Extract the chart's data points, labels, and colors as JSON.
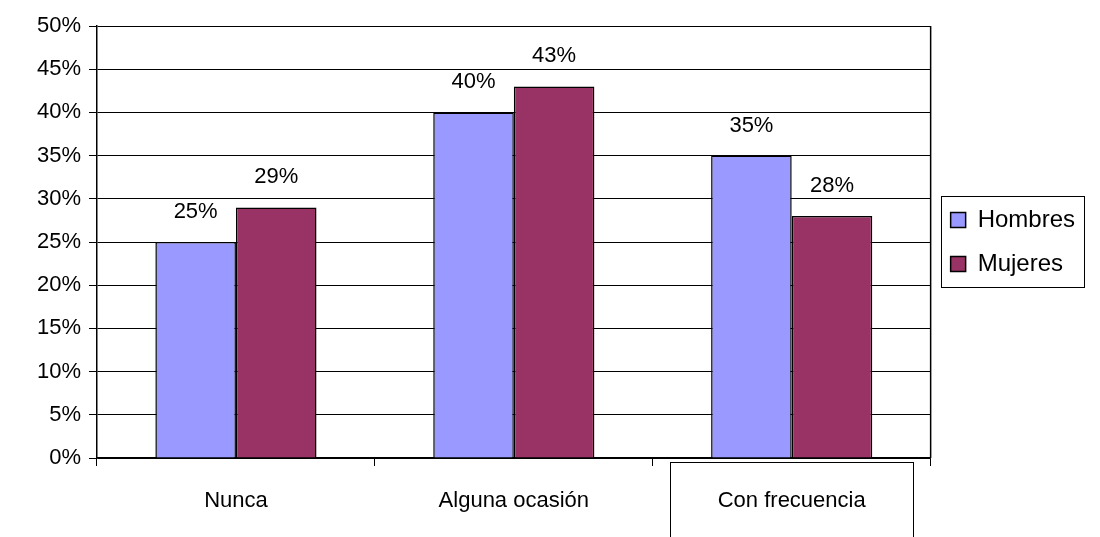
{
  "chart_data": {
    "type": "bar",
    "categories": [
      "Nunca",
      "Alguna ocasión",
      "Con frecuencia"
    ],
    "series": [
      {
        "name": "Hombres",
        "color": "#9999ff",
        "values": [
          25,
          40,
          35
        ],
        "value_labels": [
          "25%",
          "40%",
          "35%"
        ]
      },
      {
        "name": "Mujeres",
        "color": "#993366",
        "values": [
          29,
          43,
          28
        ],
        "value_labels": [
          "29%",
          "43%",
          "28%"
        ]
      }
    ],
    "ylim": [
      0,
      50
    ],
    "yticks": [
      {
        "value": 0,
        "label": "0%"
      },
      {
        "value": 5,
        "label": "5%"
      },
      {
        "value": 10,
        "label": "10%"
      },
      {
        "value": 15,
        "label": "15%"
      },
      {
        "value": 20,
        "label": "20%"
      },
      {
        "value": 25,
        "label": "25%"
      },
      {
        "value": 30,
        "label": "30%"
      },
      {
        "value": 35,
        "label": "35%"
      },
      {
        "value": 40,
        "label": "40%"
      },
      {
        "value": 45,
        "label": "45%"
      },
      {
        "value": 50,
        "label": "50%"
      }
    ],
    "grid": "y",
    "legend": "right"
  }
}
